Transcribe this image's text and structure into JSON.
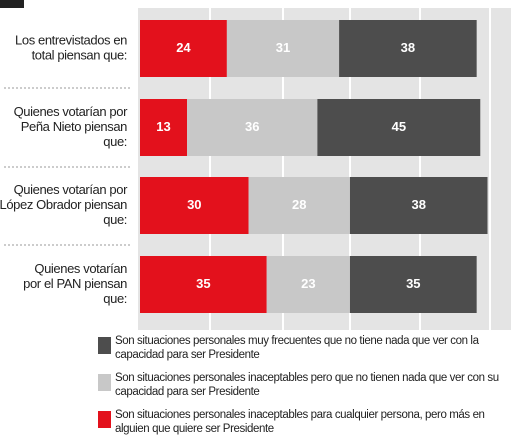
{
  "chart_data": {
    "type": "stacked-bar",
    "categories": [
      [
        "Los entrevistados en",
        "total piensan que:"
      ],
      [
        "Quienes votarían por",
        "Peña Nieto piensan",
        "que:"
      ],
      [
        "Quienes votarían por",
        "López Obrador piensan",
        "que:"
      ],
      [
        "Quienes votarían",
        "por el PAN piensan",
        "que:"
      ]
    ],
    "series": [
      {
        "name": "Son situaciones personales inaceptables para cualquier persona, pero más en alguien que quiere ser Presidente",
        "color": "#e3111c",
        "values": [
          24,
          13,
          30,
          35
        ]
      },
      {
        "name": "Son situaciones personales inaceptables pero que no tienen nada que ver con su capacidad para ser Presidente",
        "color": "#c8c8c8",
        "values": [
          31,
          36,
          28,
          23
        ]
      },
      {
        "name": "Son situaciones personales muy frecuentes que no tiene nada que ver con la capacidad para ser Presidente",
        "color": "#4d4d4d",
        "values": [
          38,
          45,
          38,
          35
        ]
      }
    ]
  }
}
